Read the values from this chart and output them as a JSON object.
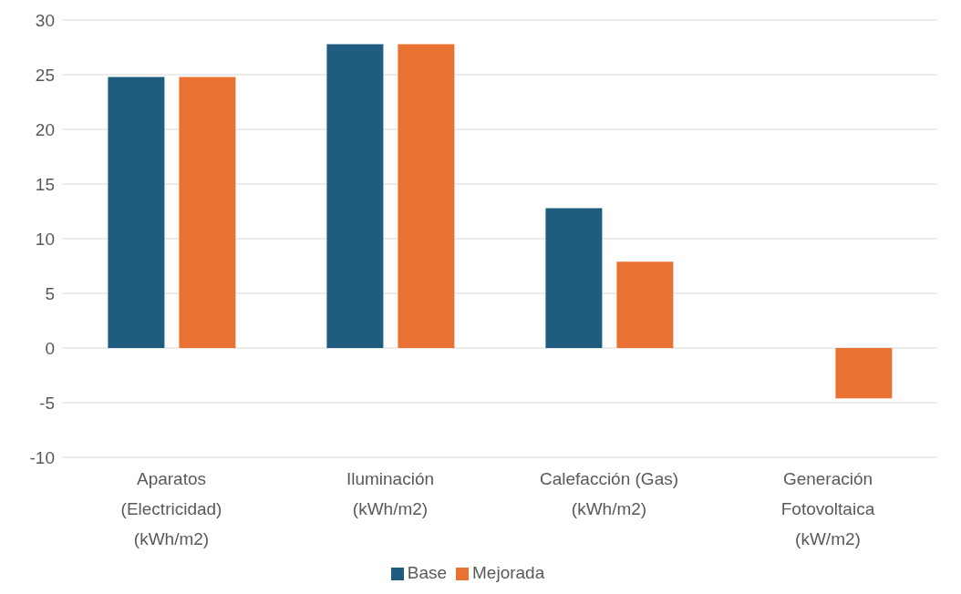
{
  "chart_data": {
    "type": "bar",
    "categories": [
      "Aparatos (Electricidad) (kWh/m2)",
      "Iluminación (kWh/m2)",
      "Calefacción (Gas) (kWh/m2)",
      "Generación Fotovoltaica (kW/m2)"
    ],
    "series": [
      {
        "name": "Base",
        "color": "#1f5c7f",
        "values": [
          24.8,
          27.8,
          12.8,
          null
        ]
      },
      {
        "name": "Mejorada",
        "color": "#e97132",
        "values": [
          24.8,
          27.8,
          7.9,
          -4.6
        ]
      }
    ],
    "ylim": [
      -10,
      30
    ],
    "yticks": [
      -10,
      -5,
      0,
      5,
      10,
      15,
      20,
      25,
      30
    ],
    "grid": "y",
    "legend": "bottom"
  }
}
